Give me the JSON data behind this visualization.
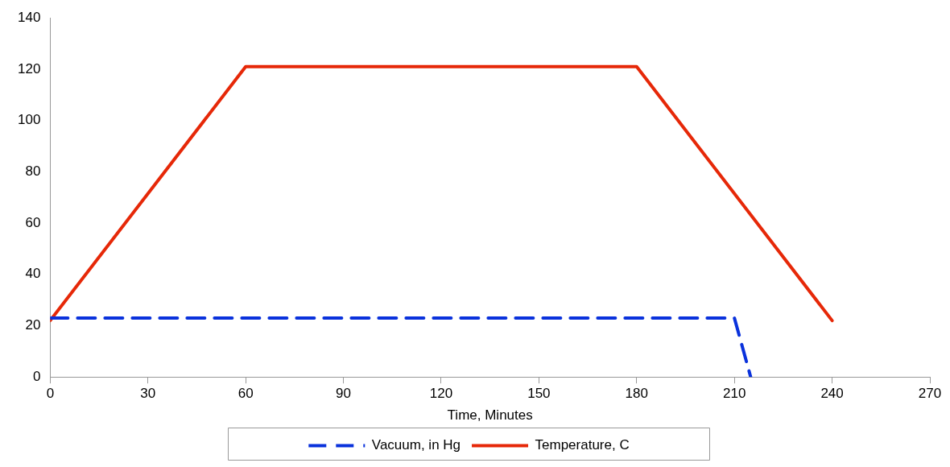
{
  "chart_data": {
    "type": "line",
    "xlabel": "Time, Minutes",
    "xlim": [
      0,
      270
    ],
    "xticks": [
      0,
      30,
      60,
      90,
      120,
      150,
      180,
      210,
      240,
      270
    ],
    "ylim": [
      0,
      140
    ],
    "yticks": [
      0,
      20,
      40,
      60,
      80,
      100,
      120,
      140
    ],
    "grid": false,
    "legend": "bottom",
    "marker": "none",
    "series": [
      {
        "name": "Vacuum, in Hg",
        "color": "#0a32dc",
        "line_style": "dashed",
        "x": [
          0,
          210,
          215
        ],
        "values": [
          23,
          23,
          0
        ]
      },
      {
        "name": "Temperature, C",
        "color": "#e62808",
        "line_style": "solid",
        "x": [
          0,
          60,
          180,
          240
        ],
        "values": [
          22,
          121,
          121,
          22
        ]
      }
    ]
  }
}
